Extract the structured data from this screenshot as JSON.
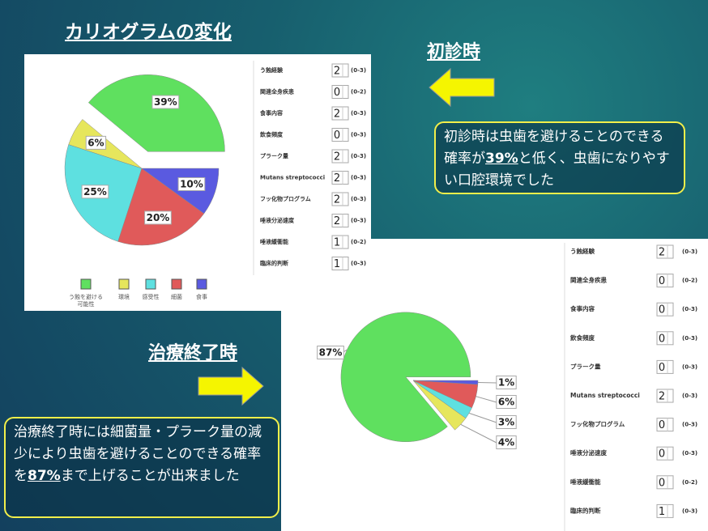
{
  "title": "カリオグラムの変化",
  "initial": {
    "heading": "初診時",
    "note_before": "初診時は虫歯を避けることのできる確率が",
    "note_emphasis": "39%",
    "note_after": "と低く、虫歯になりやすい口腔環境でした"
  },
  "final": {
    "heading": "治療終了時",
    "note_before": "治療終了時には細菌量・プラーク量の減少により虫歯を避けることのできる確率を",
    "note_emphasis": "87%",
    "note_after": "まで上げることが出来ました"
  },
  "chart_data": [
    {
      "type": "pie",
      "categories": [
        "う蝕を避ける可能性",
        "環境",
        "感受性",
        "細菌",
        "食事"
      ],
      "values": [
        39,
        6,
        25,
        20,
        10
      ],
      "value_labels": [
        "39%",
        "6%",
        "25%",
        "20%",
        "10%"
      ],
      "colors": [
        "#5fe05f",
        "#e6e65c",
        "#5ee0e0",
        "#e05a5a",
        "#5a5ae0"
      ],
      "legend": "bottom"
    },
    {
      "type": "pie",
      "values": [
        87,
        4,
        3,
        6,
        1
      ],
      "value_labels": [
        "87%",
        "4%",
        "3%",
        "6%",
        "1%"
      ],
      "colors": [
        "#5fe05f",
        "#e6e65c",
        "#5ee0e0",
        "#e05a5a",
        "#5a5ae0"
      ]
    }
  ],
  "factors_initial": [
    {
      "label": "う蝕経験",
      "value": 2,
      "range": "(0-3)"
    },
    {
      "label": "関連全身疾患",
      "value": 0,
      "range": "(0-2)"
    },
    {
      "label": "食事内容",
      "value": 2,
      "range": "(0-3)"
    },
    {
      "label": "飲食頻度",
      "value": 0,
      "range": "(0-3)"
    },
    {
      "label": "プラーク量",
      "value": 2,
      "range": "(0-3)"
    },
    {
      "label": "Mutans streptococci",
      "value": 2,
      "range": "(0-3)"
    },
    {
      "label": "フッ化物プログラム",
      "value": 2,
      "range": "(0-3)"
    },
    {
      "label": "唾液分泌速度",
      "value": 2,
      "range": "(0-3)"
    },
    {
      "label": "唾液緩衝能",
      "value": 1,
      "range": "(0-2)"
    },
    {
      "label": "臨床的判断",
      "value": 1,
      "range": "(0-3)"
    }
  ],
  "factors_final": [
    {
      "label": "う蝕経験",
      "value": 2,
      "range": "(0-3)"
    },
    {
      "label": "関連全身疾患",
      "value": 0,
      "range": "(0-2)"
    },
    {
      "label": "食事内容",
      "value": 0,
      "range": "(0-3)"
    },
    {
      "label": "飲食頻度",
      "value": 0,
      "range": "(0-3)"
    },
    {
      "label": "プラーク量",
      "value": 0,
      "range": "(0-3)"
    },
    {
      "label": "Mutans streptococci",
      "value": 2,
      "range": "(0-3)"
    },
    {
      "label": "フッ化物プログラム",
      "value": 0,
      "range": "(0-3)"
    },
    {
      "label": "唾液分泌速度",
      "value": 0,
      "range": "(0-3)"
    },
    {
      "label": "唾液緩衝能",
      "value": 0,
      "range": "(0-2)"
    },
    {
      "label": "臨床的判断",
      "value": 1,
      "range": "(0-3)"
    }
  ]
}
